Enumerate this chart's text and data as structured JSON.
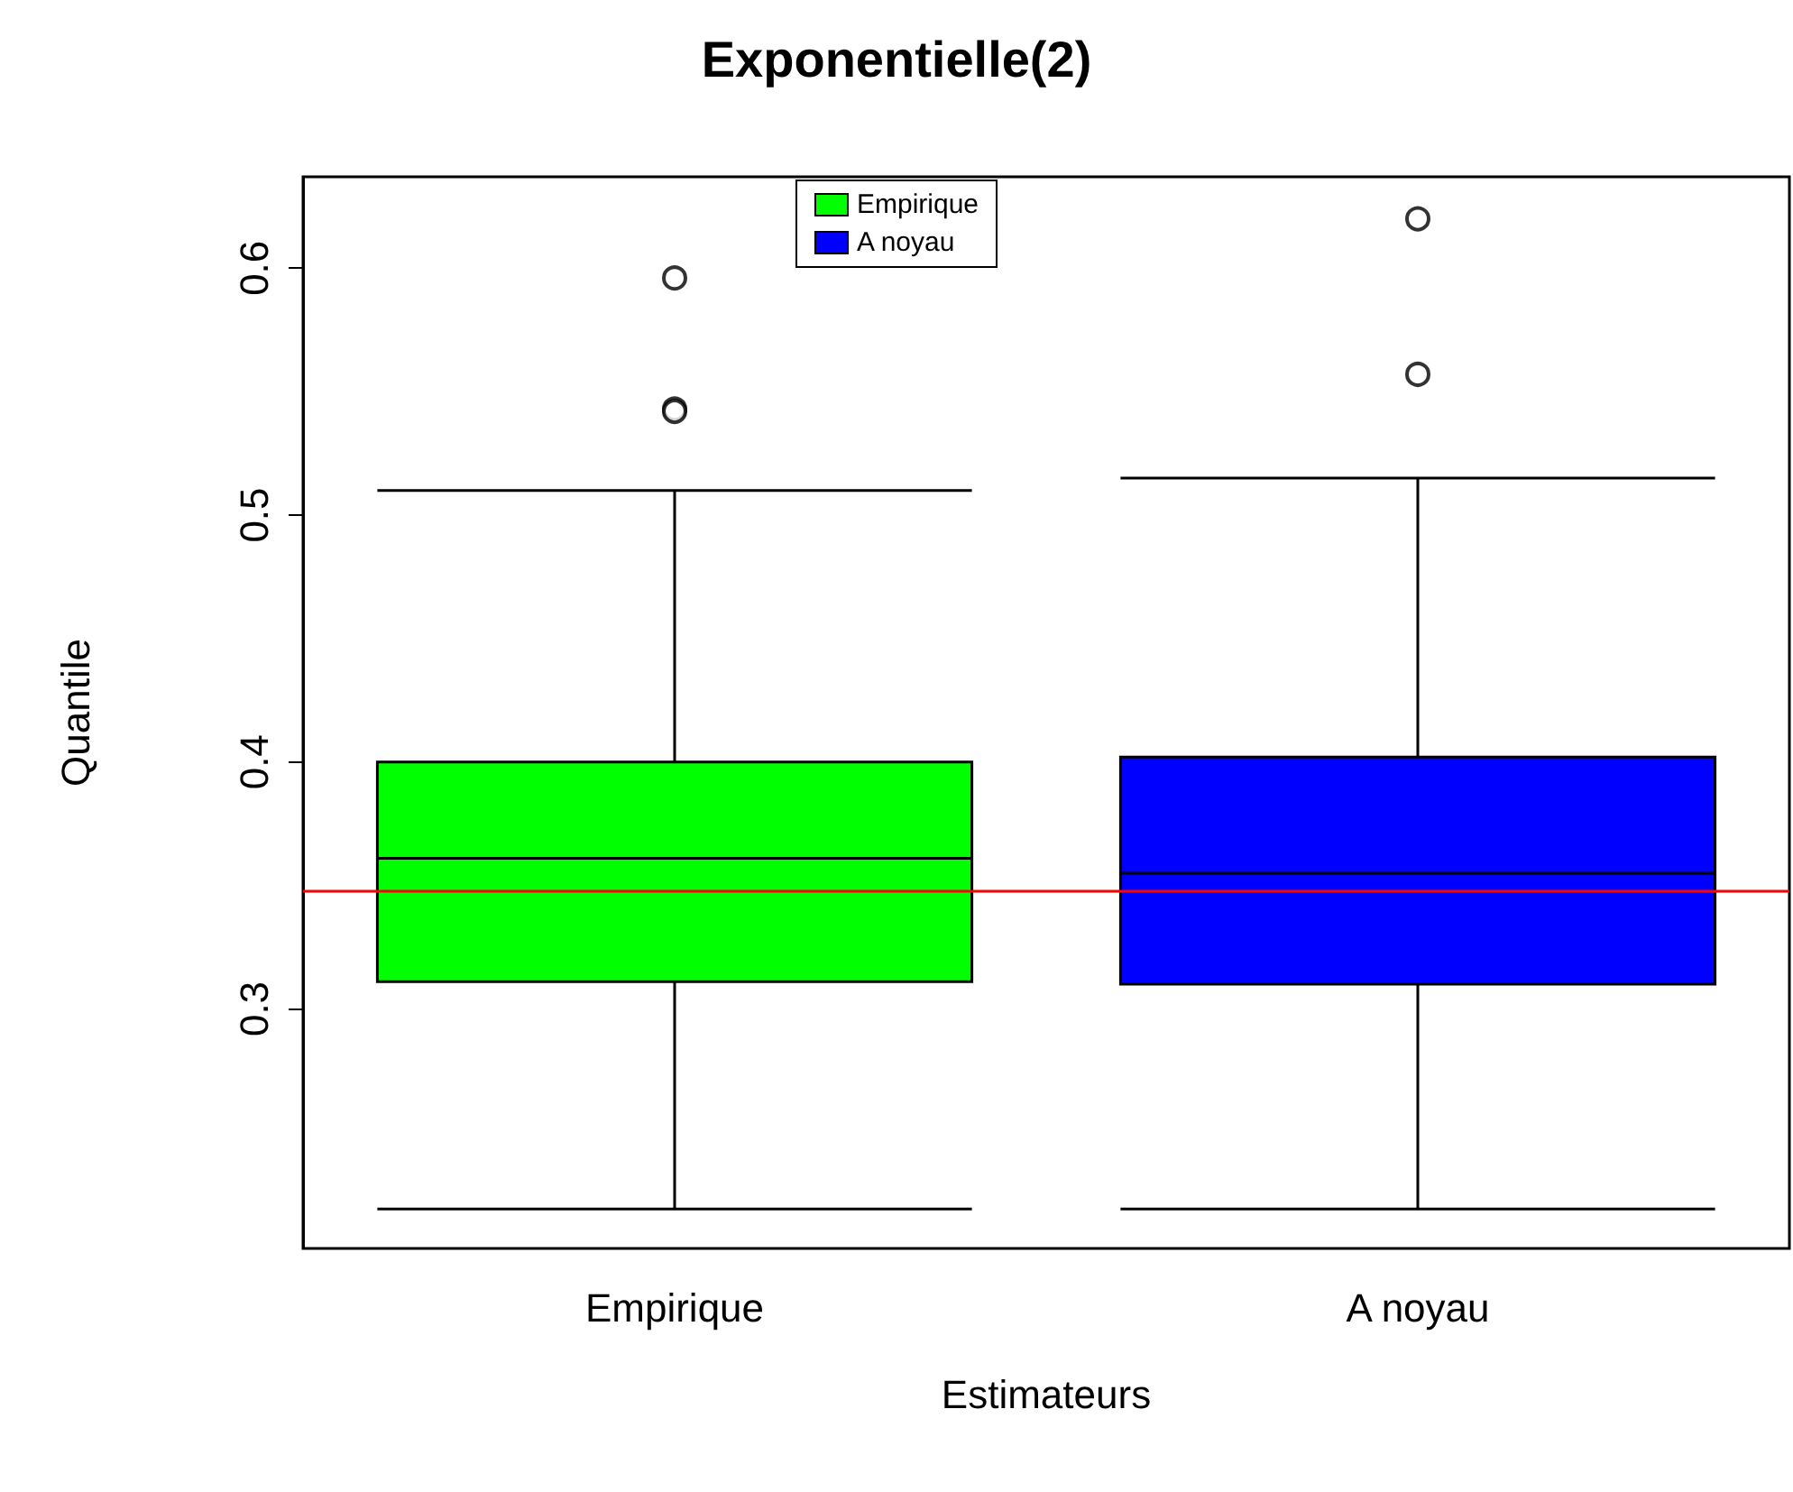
{
  "chart_data": {
    "type": "box",
    "title": "Exponentielle(2)",
    "xlabel": "Estimateurs",
    "ylabel": "Quantile",
    "categories": [
      "Empirique",
      "A noyau"
    ],
    "series": [
      {
        "name": "Empirique",
        "color": "#00ff00",
        "boxes": [
          {
            "low": 0.219,
            "q1": 0.311,
            "median": 0.361,
            "q3": 0.4,
            "high": 0.51,
            "outliers": [
              0.543,
              0.542,
              0.596
            ]
          },
          null
        ]
      },
      {
        "name": "A noyau",
        "color": "#0000ff",
        "boxes": [
          null,
          {
            "low": 0.219,
            "q1": 0.31,
            "median": 0.355,
            "q3": 0.402,
            "high": 0.515,
            "outliers": [
              0.557,
              0.62
            ]
          }
        ]
      }
    ],
    "ylim": [
      0.203,
      0.637
    ],
    "yticks": [
      0.3,
      0.4,
      0.5,
      0.6
    ],
    "ref_lines": [
      {
        "axis": "y",
        "value": 0.348,
        "color": "#ff0000"
      }
    ],
    "legend": "top",
    "grid": false
  }
}
